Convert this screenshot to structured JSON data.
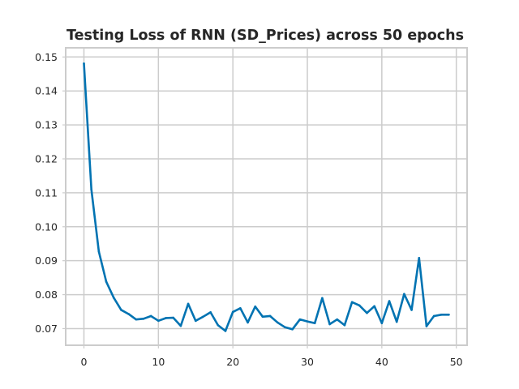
{
  "chart_data": {
    "type": "line",
    "title": "Testing Loss of RNN (SD_Prices) across 50 epochs",
    "xlabel": "",
    "ylabel": "",
    "xlim": [
      -2.45,
      51.45
    ],
    "ylim": [
      0.0651,
      0.1527
    ],
    "grid": true,
    "x_ticks": [
      0,
      10,
      20,
      30,
      40,
      50
    ],
    "y_ticks": [
      0.07,
      0.08,
      0.09,
      0.1,
      0.11,
      0.12,
      0.13,
      0.14,
      0.15
    ],
    "x_tick_labels": [
      "0",
      "10",
      "20",
      "30",
      "40",
      "50"
    ],
    "y_tick_labels": [
      "0.07",
      "0.08",
      "0.09",
      "0.10",
      "0.11",
      "0.12",
      "0.13",
      "0.14",
      "0.15"
    ],
    "series": [
      {
        "color": "#0173b2",
        "x": [
          0,
          1,
          2,
          3,
          4,
          5,
          6,
          7,
          8,
          9,
          10,
          11,
          12,
          13,
          14,
          15,
          16,
          17,
          18,
          19,
          20,
          21,
          22,
          23,
          24,
          25,
          26,
          27,
          28,
          29,
          30,
          31,
          32,
          33,
          34,
          35,
          36,
          37,
          38,
          39,
          40,
          41,
          42,
          43,
          44,
          45,
          46,
          47,
          48,
          49
        ],
        "values": [
          0.1481,
          0.111,
          0.0927,
          0.0838,
          0.0791,
          0.0755,
          0.0743,
          0.0727,
          0.0729,
          0.0737,
          0.0723,
          0.0731,
          0.0732,
          0.0708,
          0.0773,
          0.0723,
          0.0735,
          0.0748,
          0.071,
          0.0693,
          0.0749,
          0.076,
          0.0718,
          0.0765,
          0.0735,
          0.0737,
          0.0718,
          0.0704,
          0.0698,
          0.0727,
          0.0721,
          0.0716,
          0.079,
          0.0713,
          0.0727,
          0.071,
          0.0778,
          0.0768,
          0.0746,
          0.0766,
          0.0716,
          0.0781,
          0.072,
          0.0802,
          0.0755,
          0.0908,
          0.0707,
          0.0737,
          0.0741,
          0.0741
        ]
      }
    ]
  }
}
